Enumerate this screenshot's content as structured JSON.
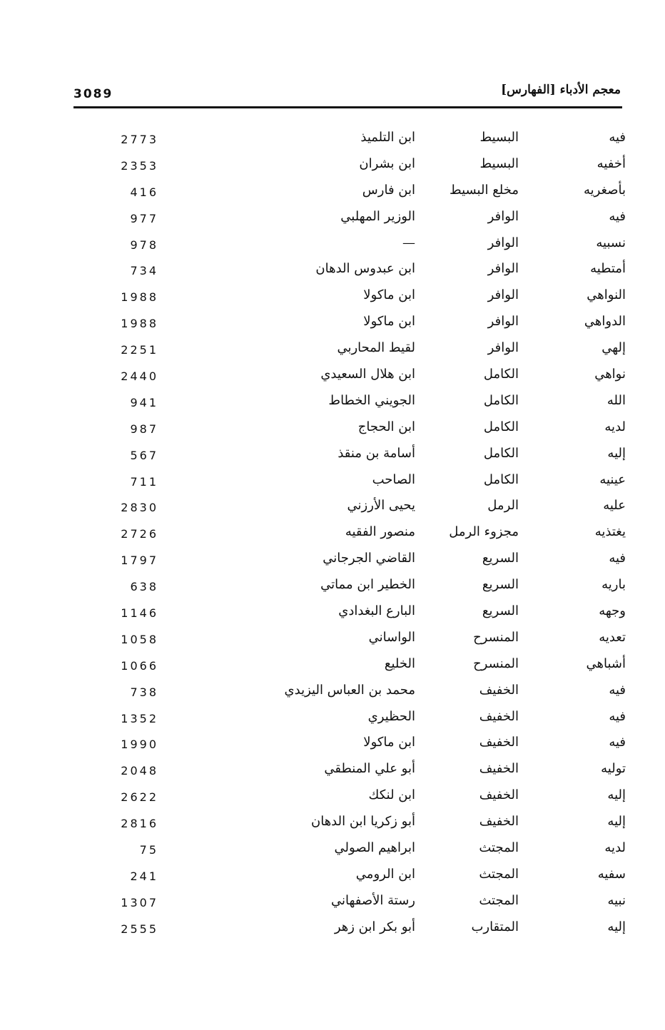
{
  "header": {
    "title": "معجم الأدباء [الفهارس]",
    "page_number": "3089"
  },
  "columns": [
    "rhyme",
    "meter",
    "poet",
    "page"
  ],
  "rows": [
    {
      "rhyme": "فيه",
      "meter": "البسيط",
      "poet": "ابن التلميذ",
      "page": "2773"
    },
    {
      "rhyme": "أخفيه",
      "meter": "البسيط",
      "poet": "ابن بشران",
      "page": "2353"
    },
    {
      "rhyme": "بأصغريه",
      "meter": "مخلع البسيط",
      "poet": "ابن فارس",
      "page": "416"
    },
    {
      "rhyme": "فيه",
      "meter": "الوافر",
      "poet": "الوزير المهلبي",
      "page": "977"
    },
    {
      "rhyme": "نسبيه",
      "meter": "الوافر",
      "poet": "—",
      "page": "978"
    },
    {
      "rhyme": "أمتطيه",
      "meter": "الوافر",
      "poet": "ابن عبدوس الدهان",
      "page": "734"
    },
    {
      "rhyme": "النواهي",
      "meter": "الوافر",
      "poet": "ابن ماكولا",
      "page": "1988"
    },
    {
      "rhyme": "الدواهي",
      "meter": "الوافر",
      "poet": "ابن ماكولا",
      "page": "1988"
    },
    {
      "rhyme": "إلهي",
      "meter": "الوافر",
      "poet": "لقيط المحاربي",
      "page": "2251"
    },
    {
      "rhyme": "نواهي",
      "meter": "الكامل",
      "poet": "ابن هلال السعيدي",
      "page": "2440"
    },
    {
      "rhyme": "الله",
      "meter": "الكامل",
      "poet": "الجويني الخطاط",
      "page": "941"
    },
    {
      "rhyme": "لديه",
      "meter": "الكامل",
      "poet": "ابن الحجاج",
      "page": "987"
    },
    {
      "rhyme": "إليه",
      "meter": "الكامل",
      "poet": "أسامة بن منقذ",
      "page": "567"
    },
    {
      "rhyme": "عينيه",
      "meter": "الكامل",
      "poet": "الصاحب",
      "page": "711"
    },
    {
      "rhyme": "عليه",
      "meter": "الرمل",
      "poet": "يحيى الأرزني",
      "page": "2830"
    },
    {
      "rhyme": "يغتذيه",
      "meter": "مجزوء الرمل",
      "poet": "منصور الفقيه",
      "page": "2726"
    },
    {
      "rhyme": "فيه",
      "meter": "السريع",
      "poet": "القاضي الجرجاني",
      "page": "1797"
    },
    {
      "rhyme": "باريه",
      "meter": "السريع",
      "poet": "الخطير ابن مماتي",
      "page": "638"
    },
    {
      "rhyme": "وجهه",
      "meter": "السريع",
      "poet": "البارع البغدادي",
      "page": "1146"
    },
    {
      "rhyme": "تعديه",
      "meter": "المنسرح",
      "poet": "الواساني",
      "page": "1058"
    },
    {
      "rhyme": "أشباهي",
      "meter": "المنسرح",
      "poet": "الخليع",
      "page": "1066"
    },
    {
      "rhyme": "فيه",
      "meter": "الخفيف",
      "poet": "محمد بن العباس اليزيدي",
      "page": "738"
    },
    {
      "rhyme": "فيه",
      "meter": "الخفيف",
      "poet": "الحظيري",
      "page": "1352"
    },
    {
      "rhyme": "فيه",
      "meter": "الخفيف",
      "poet": "ابن ماكولا",
      "page": "1990"
    },
    {
      "rhyme": "توليه",
      "meter": "الخفيف",
      "poet": "أبو علي المنطقي",
      "page": "2048"
    },
    {
      "rhyme": "إليه",
      "meter": "الخفيف",
      "poet": "ابن لنكك",
      "page": "2622"
    },
    {
      "rhyme": "إليه",
      "meter": "الخفيف",
      "poet": "أبو زكريا ابن الدهان",
      "page": "2816"
    },
    {
      "rhyme": "لديه",
      "meter": "المجتث",
      "poet": "ابراهيم الصولي",
      "page": "75"
    },
    {
      "rhyme": "سفيه",
      "meter": "المجتث",
      "poet": "ابن الرومي",
      "page": "241"
    },
    {
      "rhyme": "نبيه",
      "meter": "المجتث",
      "poet": "رستة الأصفهاني",
      "page": "1307"
    },
    {
      "rhyme": "إليه",
      "meter": "المتقارب",
      "poet": "أبو بكر ابن زهر",
      "page": "2555"
    }
  ]
}
